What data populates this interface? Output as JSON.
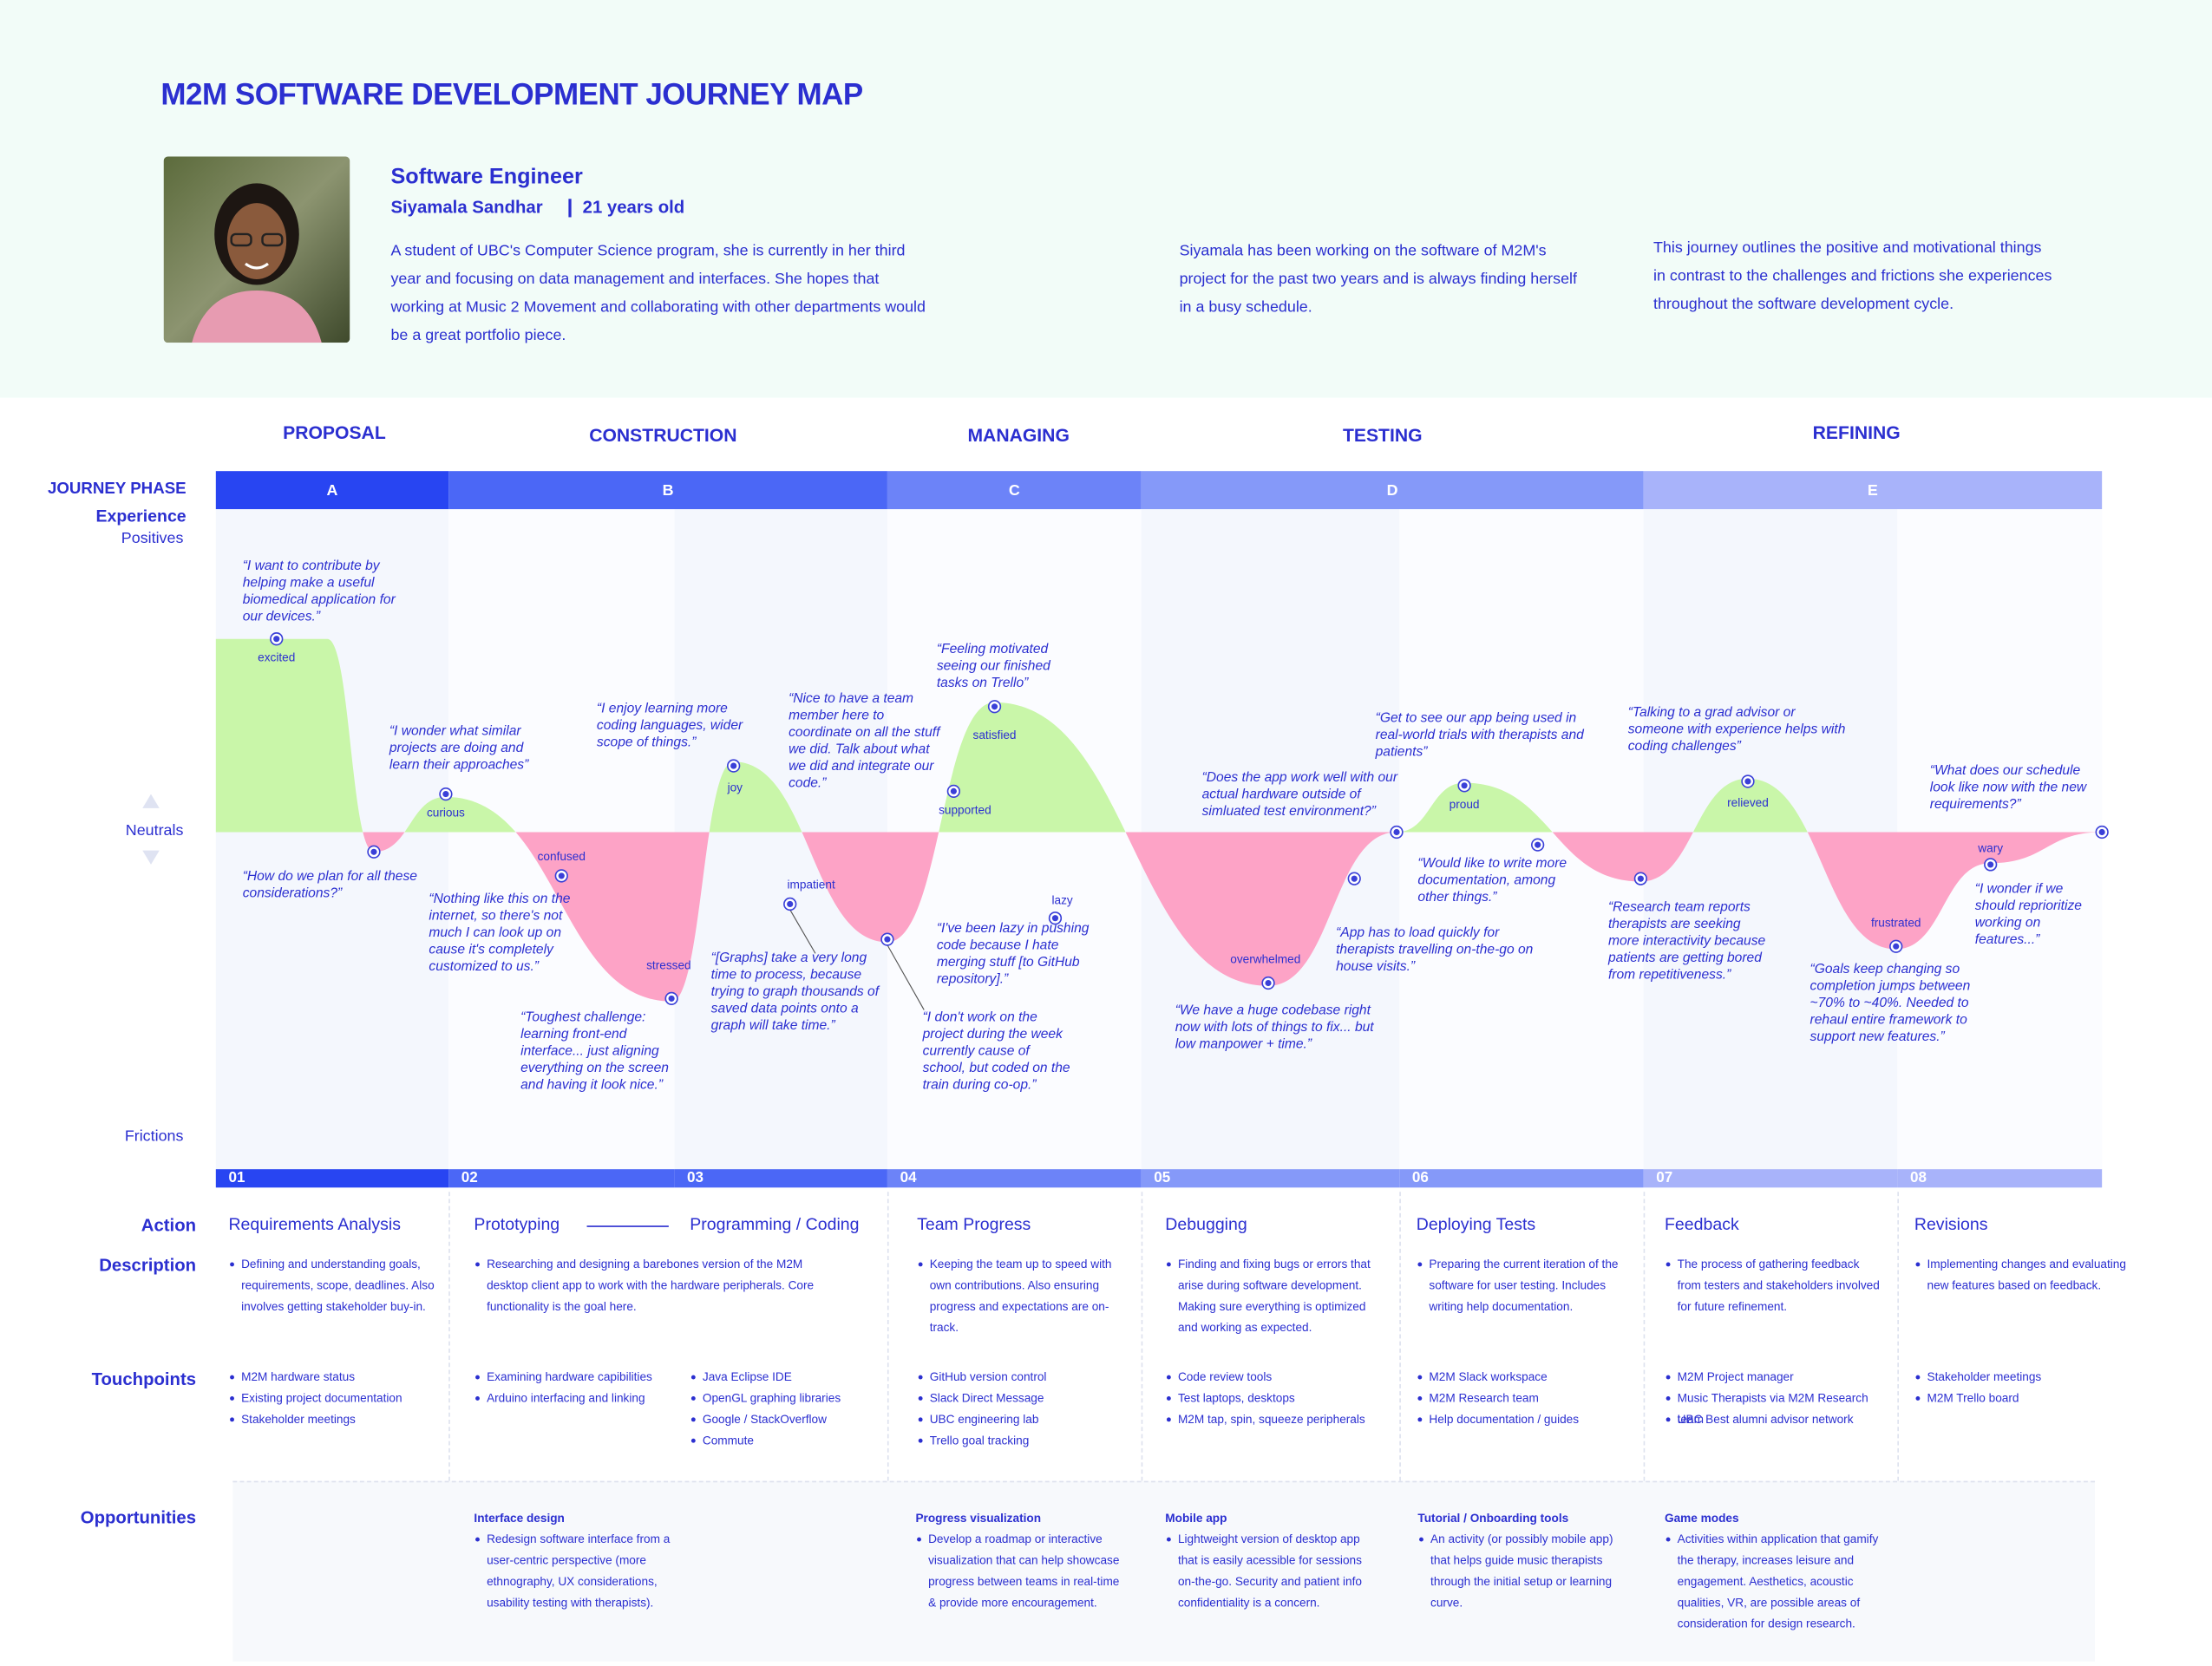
{
  "header": {
    "title": "M2M SOFTWARE DEVELOPMENT JOURNEY MAP",
    "role": "Software Engineer",
    "name": "Siyamala Sandhar",
    "age": "21 years old",
    "bio": "A student of UBC's Computer Science program, she is currently in her third year and focusing on data management and interfaces. She hopes that working at Music 2 Movement and collaborating with other departments would be a great portfolio piece.",
    "context": "Siyamala has been working on the software of M2M's project for the past two years and is always finding herself in a busy schedule.",
    "summary": "This journey outlines the positive and motivational things in contrast to the challenges and frictions she experiences throughout the software development cycle."
  },
  "row_labels": {
    "journey_phase": "JOURNEY PHASE",
    "experience": "Experience",
    "positives": "Positives",
    "neutrals": "Neutrals",
    "frictions": "Frictions",
    "action": "Action",
    "description": "Description",
    "touchpoints": "Touchpoints",
    "opportunities": "Opportunities"
  },
  "phases": [
    {
      "name": "PROPOSAL",
      "letter": "A"
    },
    {
      "name": "CONSTRUCTION",
      "letter": "B"
    },
    {
      "name": "MANAGING",
      "letter": "C"
    },
    {
      "name": "TESTING",
      "letter": "D"
    },
    {
      "name": "REFINING",
      "letter": "E"
    }
  ],
  "moments": [
    {
      "label": "excited",
      "quote": "“I want to contribute by helping make a useful biomedical application for our devices.”"
    },
    {
      "quote": "“How do we plan for all these considerations?”"
    },
    {
      "label": "curious",
      "quote": "“I wonder what similar projects are doing and learn their approaches”"
    },
    {
      "label": "confused",
      "quote": "“Nothing like this on the internet, so there's not much I can look up on cause it's completely customized to us.”"
    },
    {
      "label": "stressed",
      "quote": "“Toughest challenge: learning front-end interface... just aligning everything on the screen and having it look nice.”"
    },
    {
      "label": "joy",
      "quote": "“I enjoy learning more coding languages, wider scope of things.”"
    },
    {
      "label": "impatient",
      "quote": "“[Graphs] take a very long time to process, because trying to graph thousands of saved data points onto a graph will take time.”"
    },
    {
      "quote": "“I don't work on the project during the week currently cause of school, but coded on the train during co-op.”"
    },
    {
      "label": "supported",
      "quote": "“Nice to have a team member here to coordinate on all the stuff we did. Talk about what we did and integrate our code.”"
    },
    {
      "label": "satisfied",
      "quote": "“Feeling motivated seeing our finished tasks on Trello”"
    },
    {
      "label": "lazy",
      "quote": "“I've been lazy in pushing code because I hate merging stuff [to GitHub repository].”"
    },
    {
      "label": "overwhelmed",
      "quote": "“We have a huge codebase right now with lots of things to fix... but low manpower + time.”"
    },
    {
      "quote": "“App has to load quickly for therapists travelling on-the-go on house visits.”"
    },
    {
      "quote": "“Does the app work well with our actual hardware outside of simluated test environment?”"
    },
    {
      "label": "proud",
      "quote": "“Get to see our app being used in real-world trials with therapists and patients”"
    },
    {
      "quote": "“Would like to write more documentation, among other things.”"
    },
    {
      "quote": "“Research team reports therapists are seeking more interactivity because patients are getting bored from repetitiveness.”"
    },
    {
      "label": "relieved",
      "quote": "“Talking to a grad advisor or someone with experience helps with coding challenges”"
    },
    {
      "label": "frustrated",
      "quote": "“Goals keep changing so completion jumps between ~70% to ~40%. Needed to rehaul entire framework to support new features.”"
    },
    {
      "label": "wary",
      "quote": "“I wonder if we should reprioritize working on features...”"
    },
    {
      "quote": "“What does our schedule look like now with the new requirements?”"
    }
  ],
  "steps": [
    {
      "number": "01",
      "action": "Requirements Analysis",
      "description": "Defining and understanding goals, requirements, scope, deadlines. Also involves getting stakeholder buy-in.",
      "touchpoints": [
        "M2M hardware status",
        "Existing project documentation",
        "Stakeholder meetings"
      ]
    },
    {
      "number": "02",
      "action": "Prototyping",
      "description": "Researching and designing a barebones version of the M2M desktop client app to work with the hardware peripherals. Core functionality is the goal here.",
      "touchpoints": [
        "Examining hardware capibilities",
        "Arduino interfacing and linking"
      ]
    },
    {
      "number": "03",
      "action": "Programming / Coding",
      "touchpoints": [
        "Java Eclipse IDE",
        "OpenGL graphing libraries",
        "Google / StackOverflow",
        "Commute"
      ]
    },
    {
      "number": "04",
      "action": "Team Progress",
      "description": "Keeping the team up to speed with own contributions. Also ensuring progress and expectations are on-track.",
      "touchpoints": [
        "GitHub version control",
        "Slack Direct Message",
        "UBC engineering lab",
        "Trello goal tracking"
      ]
    },
    {
      "number": "05",
      "action": "Debugging",
      "description": "Finding and fixing bugs or errors that arise during software development. Making sure everything is optimized and working as expected.",
      "touchpoints": [
        "Code review tools",
        "Test laptops, desktops",
        "M2M tap, spin, squeeze peripherals"
      ]
    },
    {
      "number": "06",
      "action": "Deploying Tests",
      "description": "Preparing the current iteration of the software for user testing. Includes writing help documentation.",
      "touchpoints": [
        "M2M Slack workspace",
        "M2M Research team",
        "Help documentation / guides"
      ]
    },
    {
      "number": "07",
      "action": "Feedback",
      "description": "The process of gathering feedback from testers and stakeholders involved for future refinement.",
      "touchpoints": [
        "M2M Project manager",
        "Music Therapists via M2M Research team",
        "UBC Best alumni advisor network"
      ]
    },
    {
      "number": "08",
      "action": "Revisions",
      "description": "Implementing changes and evaluating new features based on feedback.",
      "touchpoints": [
        "Stakeholder meetings",
        "M2M Trello board"
      ]
    }
  ],
  "opportunities": [
    {
      "title": "Interface design",
      "text": "Redesign software interface from a user-centric perspective (more ethnography, UX considerations, usability testing with therapists)."
    },
    {
      "title": "Progress visualization",
      "text": "Develop a roadmap or interactive visualization that can help showcase progress between teams in real-time & provide more encouragement."
    },
    {
      "title": "Mobile app",
      "text": "Lightweight version of desktop app that is easily acessible for sessions on-the-go. Security and patient info confidentiality is a concern."
    },
    {
      "title": "Tutorial / Onboarding tools",
      "text": "An activity (or possibly mobile app) that helps guide music therapists through the initial setup or learning curve."
    },
    {
      "title": "Game modes",
      "text": "Activities within application that gamify the therapy, increases leisure and engagement. Aesthetics, acoustic qualities, VR, are possible areas of consideration for design research."
    }
  ]
}
